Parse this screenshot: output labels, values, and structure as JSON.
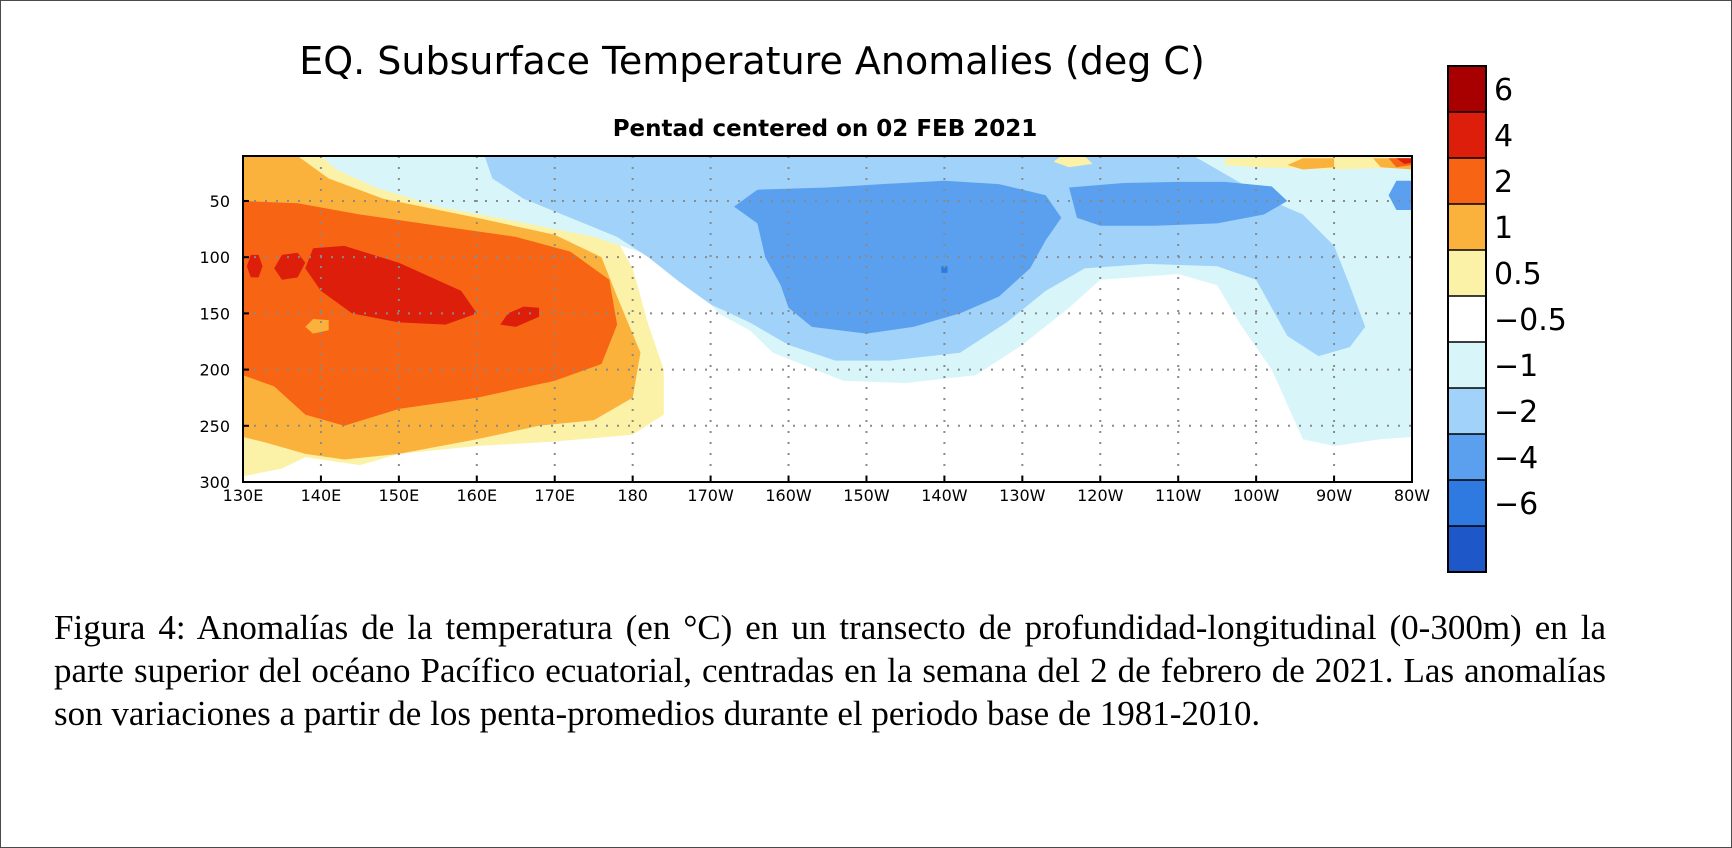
{
  "chart_data": {
    "type": "heatmap",
    "title": "EQ. Subsurface Temperature Anomalies (deg C)",
    "subtitle": "Pentad centered on 02 FEB 2021",
    "xlabel": "",
    "ylabel": "",
    "x_range": [
      130,
      280
    ],
    "y_range": [
      10,
      300
    ],
    "x_ticks": [
      {
        "value": 130,
        "label": "130E"
      },
      {
        "value": 140,
        "label": "140E"
      },
      {
        "value": 150,
        "label": "150E"
      },
      {
        "value": 160,
        "label": "160E"
      },
      {
        "value": 170,
        "label": "170E"
      },
      {
        "value": 180,
        "label": "180"
      },
      {
        "value": 190,
        "label": "170W"
      },
      {
        "value": 200,
        "label": "160W"
      },
      {
        "value": 210,
        "label": "150W"
      },
      {
        "value": 220,
        "label": "140W"
      },
      {
        "value": 230,
        "label": "130W"
      },
      {
        "value": 240,
        "label": "120W"
      },
      {
        "value": 250,
        "label": "110W"
      },
      {
        "value": 260,
        "label": "100W"
      },
      {
        "value": 270,
        "label": "90W"
      },
      {
        "value": 280,
        "label": "80W"
      }
    ],
    "y_ticks": [
      {
        "value": 50,
        "label": "50"
      },
      {
        "value": 100,
        "label": "100"
      },
      {
        "value": 150,
        "label": "150"
      },
      {
        "value": 200,
        "label": "200"
      },
      {
        "value": 250,
        "label": "250"
      },
      {
        "value": 300,
        "label": "300"
      }
    ],
    "grid": true,
    "legend_position": "right",
    "colorbar": {
      "labels": [
        "6",
        "4",
        "2",
        "1",
        "0.5",
        "−0.5",
        "−1",
        "−2",
        "−4",
        "−6"
      ],
      "colors": [
        "#a80000",
        "#dc1e0a",
        "#f76414",
        "#fbb23c",
        "#fbf2a8",
        "#ffffff",
        "#d8f6fa",
        "#a0d2fa",
        "#5aa0ee",
        "#2e7ae0",
        "#1e58c8"
      ]
    },
    "regions": [
      {
        "anomaly": 0.7,
        "color": "#fbf2a8",
        "points": [
          [
            130,
            10
          ],
          [
            140,
            10
          ],
          [
            146,
            30
          ],
          [
            152,
            48
          ],
          [
            162,
            60
          ],
          [
            170,
            70
          ],
          [
            178,
            85
          ],
          [
            180,
            110
          ],
          [
            182,
            160
          ],
          [
            184,
            200
          ],
          [
            184,
            240
          ],
          [
            180,
            258
          ],
          [
            170,
            264
          ],
          [
            160,
            268
          ],
          [
            150,
            275
          ],
          [
            145,
            285
          ],
          [
            138,
            278
          ],
          [
            135,
            288
          ],
          [
            130,
            295
          ]
        ]
      },
      {
        "anomaly": 1.5,
        "color": "#fbb23c",
        "points": [
          [
            130,
            10
          ],
          [
            137,
            10
          ],
          [
            141,
            30
          ],
          [
            148,
            48
          ],
          [
            160,
            65
          ],
          [
            170,
            80
          ],
          [
            176,
            100
          ],
          [
            178,
            135
          ],
          [
            181,
            185
          ],
          [
            180,
            225
          ],
          [
            175,
            245
          ],
          [
            168,
            250
          ],
          [
            160,
            262
          ],
          [
            150,
            275
          ],
          [
            143,
            280
          ],
          [
            138,
            275
          ],
          [
            133,
            265
          ],
          [
            130,
            260
          ]
        ]
      },
      {
        "anomaly": 3.0,
        "color": "#f76414",
        "points": [
          [
            130,
            50
          ],
          [
            137,
            52
          ],
          [
            145,
            62
          ],
          [
            155,
            72
          ],
          [
            165,
            82
          ],
          [
            172,
            95
          ],
          [
            177,
            120
          ],
          [
            178,
            160
          ],
          [
            176,
            195
          ],
          [
            170,
            210
          ],
          [
            160,
            225
          ],
          [
            150,
            235
          ],
          [
            143,
            250
          ],
          [
            138,
            240
          ],
          [
            134,
            215
          ],
          [
            130,
            205
          ]
        ]
      },
      {
        "anomaly": 4.5,
        "color": "#dc1e0a",
        "points": [
          [
            139,
            92
          ],
          [
            143,
            90
          ],
          [
            150,
            105
          ],
          [
            158,
            130
          ],
          [
            160,
            150
          ],
          [
            156,
            160
          ],
          [
            150,
            158
          ],
          [
            144,
            150
          ],
          [
            140,
            130
          ],
          [
            138,
            110
          ]
        ]
      },
      {
        "anomaly": 4.5,
        "color": "#dc1e0a",
        "points": [
          [
            135,
            98
          ],
          [
            137,
            96
          ],
          [
            138,
            105
          ],
          [
            137,
            118
          ],
          [
            135,
            120
          ],
          [
            134,
            110
          ]
        ]
      },
      {
        "anomaly": 4.5,
        "color": "#dc1e0a",
        "points": [
          [
            131,
            98
          ],
          [
            132,
            98
          ],
          [
            132.5,
            108
          ],
          [
            132,
            118
          ],
          [
            131,
            118
          ],
          [
            130.5,
            108
          ]
        ]
      },
      {
        "anomaly": 4.5,
        "color": "#dc1e0a",
        "points": [
          [
            166,
            144
          ],
          [
            168,
            145
          ],
          [
            168,
            153
          ],
          [
            165,
            162
          ],
          [
            163,
            160
          ],
          [
            164,
            150
          ]
        ]
      },
      {
        "anomaly": 1.5,
        "color": "#fbb23c",
        "points": [
          [
            139,
            155
          ],
          [
            141,
            156
          ],
          [
            141,
            165
          ],
          [
            139,
            168
          ],
          [
            138,
            162
          ]
        ]
      },
      {
        "anomaly": -0.7,
        "color": "#d8f6fa",
        "points": [
          [
            140,
            10
          ],
          [
            280,
            10
          ],
          [
            280,
            260
          ],
          [
            276,
            262
          ],
          [
            270,
            268
          ],
          [
            266,
            262
          ],
          [
            262,
            200
          ],
          [
            258,
            160
          ],
          [
            255,
            125
          ],
          [
            250,
            115
          ],
          [
            240,
            120
          ],
          [
            236,
            145
          ],
          [
            230,
            178
          ],
          [
            224,
            205
          ],
          [
            215,
            212
          ],
          [
            207,
            210
          ],
          [
            198,
            185
          ],
          [
            195,
            165
          ],
          [
            191,
            150
          ],
          [
            188,
            125
          ],
          [
            182,
            98
          ],
          [
            175,
            82
          ],
          [
            165,
            68
          ],
          [
            155,
            55
          ],
          [
            147,
            38
          ],
          [
            142,
            22
          ]
        ]
      },
      {
        "anomaly": -1.5,
        "color": "#a0d2fa",
        "points": [
          [
            161,
            10
          ],
          [
            252,
            10
          ],
          [
            257,
            30
          ],
          [
            262,
            50
          ],
          [
            266,
            62
          ],
          [
            270,
            90
          ],
          [
            272,
            125
          ],
          [
            274,
            162
          ],
          [
            272,
            180
          ],
          [
            268,
            188
          ],
          [
            264,
            170
          ],
          [
            262,
            145
          ],
          [
            260,
            120
          ],
          [
            255,
            108
          ],
          [
            246,
            106
          ],
          [
            238,
            110
          ],
          [
            233,
            130
          ],
          [
            228,
            158
          ],
          [
            222,
            185
          ],
          [
            213,
            192
          ],
          [
            206,
            192
          ],
          [
            200,
            178
          ],
          [
            195,
            158
          ],
          [
            190,
            142
          ],
          [
            186,
            122
          ],
          [
            182,
            100
          ],
          [
            178,
            82
          ],
          [
            172,
            65
          ],
          [
            166,
            48
          ],
          [
            162,
            30
          ]
        ]
      },
      {
        "anomaly": -3.0,
        "color": "#5aa0ee",
        "points": [
          [
            196,
            40
          ],
          [
            205,
            38
          ],
          [
            212,
            35
          ],
          [
            220,
            32
          ],
          [
            227,
            35
          ],
          [
            233,
            45
          ],
          [
            235,
            65
          ],
          [
            233,
            85
          ],
          [
            231,
            110
          ],
          [
            227,
            135
          ],
          [
            222,
            150
          ],
          [
            216,
            162
          ],
          [
            210,
            168
          ],
          [
            203,
            162
          ],
          [
            200,
            145
          ],
          [
            199,
            125
          ],
          [
            197,
            100
          ],
          [
            196,
            70
          ],
          [
            193,
            55
          ]
        ]
      },
      {
        "anomaly": -3.0,
        "color": "#5aa0ee",
        "points": [
          [
            236,
            38
          ],
          [
            243,
            34
          ],
          [
            250,
            33
          ],
          [
            256,
            33
          ],
          [
            262,
            37
          ],
          [
            264,
            50
          ],
          [
            261,
            62
          ],
          [
            255,
            70
          ],
          [
            247,
            72
          ],
          [
            240,
            72
          ],
          [
            237,
            65
          ]
        ]
      },
      {
        "anomaly": -3.0,
        "color": "#5aa0ee",
        "points": [
          [
            278,
            32
          ],
          [
            280,
            32
          ],
          [
            280,
            58
          ],
          [
            278,
            58
          ],
          [
            277,
            45
          ]
        ]
      },
      {
        "anomaly": 0.7,
        "color": "#fbf2a8",
        "points": [
          [
            256,
            12
          ],
          [
            270,
            10
          ],
          [
            280,
            12
          ],
          [
            280,
            20
          ],
          [
            270,
            22
          ],
          [
            260,
            20
          ],
          [
            256,
            18
          ]
        ]
      },
      {
        "anomaly": 1.5,
        "color": "#fbb23c",
        "points": [
          [
            266,
            12
          ],
          [
            270,
            12
          ],
          [
            270,
            20
          ],
          [
            266,
            22
          ],
          [
            264,
            18
          ]
        ]
      },
      {
        "anomaly": 1.5,
        "color": "#fbb23c",
        "points": [
          [
            275,
            12
          ],
          [
            280,
            12
          ],
          [
            280,
            22
          ],
          [
            276,
            20
          ]
        ]
      },
      {
        "anomaly": 3.0,
        "color": "#f76414",
        "points": [
          [
            277,
            12
          ],
          [
            280,
            12
          ],
          [
            280,
            18
          ],
          [
            278,
            20
          ]
        ]
      },
      {
        "anomaly": 4.5,
        "color": "#dc1e0a",
        "points": [
          [
            278,
            12
          ],
          [
            280,
            12
          ],
          [
            280,
            16
          ],
          [
            279,
            17
          ]
        ]
      },
      {
        "anomaly": 0.7,
        "color": "#fbf2a8",
        "points": [
          [
            235,
            10
          ],
          [
            238,
            10
          ],
          [
            239,
            17
          ],
          [
            236,
            20
          ],
          [
            234,
            15
          ]
        ]
      },
      {
        "anomaly": -4.5,
        "color": "#2e7ae0",
        "points": [
          [
            219.6,
            108
          ],
          [
            220.4,
            108
          ],
          [
            220.4,
            114
          ],
          [
            219.6,
            114
          ]
        ]
      }
    ]
  },
  "caption": "Figura 4: Anomalías de la temperatura (en °C) en un transecto de profundidad-longitudinal (0-300m) en la parte superior del océano Pacífico ecuatorial, centradas en la semana del 2 de febrero de 2021. Las anomalías son variaciones a partir de los penta-promedios durante el periodo base de 1981-2010."
}
